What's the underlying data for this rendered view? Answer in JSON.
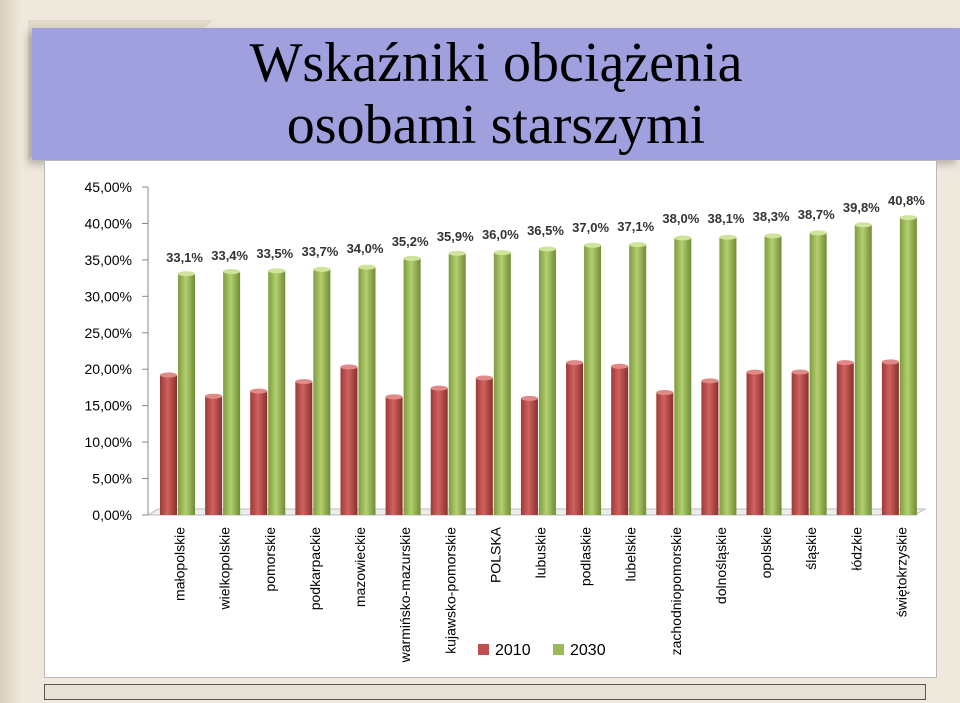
{
  "slide": {
    "title_line1": "Wskaźniki obciążenia",
    "title_line2": "osobami starszymi"
  },
  "chart_data": {
    "type": "bar",
    "categories": [
      "małopolskie",
      "wielkopolskie",
      "pomorskie",
      "podkarpackie",
      "mazowieckie",
      "warmińsko-mazurskie",
      "kujawsko-pomorskie",
      "POLSKA",
      "lubuskie",
      "podlaskie",
      "lubelskie",
      "zachodniopomorskie",
      "dolnośląskie",
      "opolskie",
      "śląskie",
      "łódzkie",
      "świętokrzyskie"
    ],
    "series": [
      {
        "name": "2010",
        "color": "#c0504d",
        "values": [
          19.2,
          16.3,
          17.0,
          18.3,
          20.3,
          16.2,
          17.4,
          18.8,
          16.0,
          20.9,
          20.4,
          16.8,
          18.4,
          19.6,
          19.6,
          20.9,
          21.0
        ]
      },
      {
        "name": "2030",
        "color": "#9bbb59",
        "values": [
          33.1,
          33.4,
          33.5,
          33.7,
          34.0,
          35.2,
          35.9,
          36.0,
          36.5,
          37.0,
          37.1,
          38.0,
          38.1,
          38.3,
          38.7,
          39.8,
          40.8
        ]
      }
    ],
    "data_labels_2030": [
      "33,1%",
      "33,4%",
      "33,5%",
      "33,7%",
      "34,0%",
      "35,2%",
      "35,9%",
      "36,0%",
      "36,5%",
      "37,0%",
      "37,1%",
      "38,0%",
      "38,1%",
      "38,3%",
      "38,7%",
      "39,8%",
      "40,8%"
    ],
    "y_ticks": [
      "0,00%",
      "5,00%",
      "10,00%",
      "15,00%",
      "20,00%",
      "25,00%",
      "30,00%",
      "35,00%",
      "40,00%",
      "45,00%"
    ],
    "ylim": [
      0,
      45
    ],
    "legend_position": "bottom",
    "grid": false
  }
}
